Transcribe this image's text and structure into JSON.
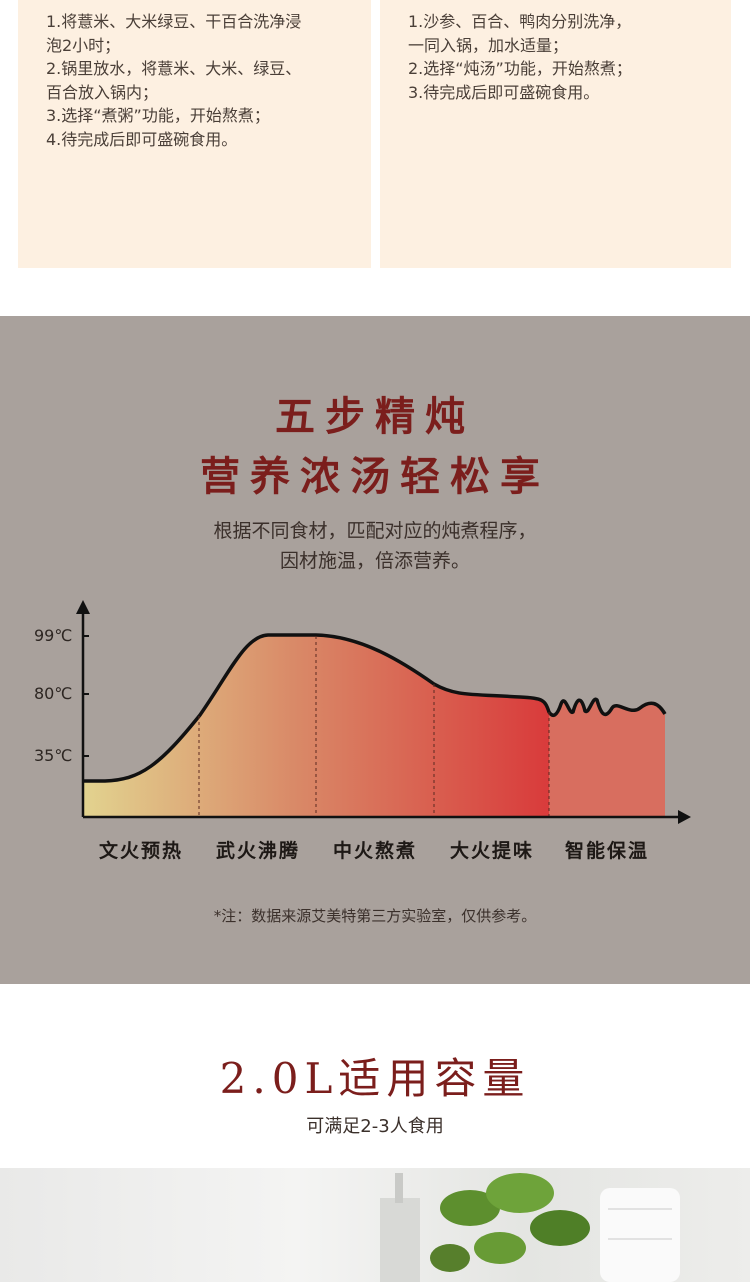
{
  "recipes": [
    {
      "steps": [
        "1.将薏米、大米绿豆、干百合洗净浸",
        "泡2小时；",
        "2.锅里放水，将薏米、大米、绿豆、",
        "百合放入锅内；",
        "3.选择“煮粥”功能，开始熬煮；",
        "4.待完成后即可盛碗食用。"
      ]
    },
    {
      "steps": [
        "1.沙参、百合、鸭肉分别洗净，",
        "一同入锅，加水适量；",
        "2.选择“炖汤”功能，开始熬煮；",
        "3.待完成后即可盛碗食用。"
      ]
    }
  ],
  "feature": {
    "title_line1": "五步精炖",
    "title_line2": "营养浓汤轻松享",
    "subtitle_line1": "根据不同食材，匹配对应的炖煮程序，",
    "subtitle_line2": "因材施温，倍添营养。",
    "note": "*注：数据来源艾美特第三方实验室，仅供参考。"
  },
  "chart_data": {
    "type": "area",
    "y_ticks": [
      "99℃",
      "80℃",
      "35℃"
    ],
    "stages": [
      "文火预热",
      "武火沸腾",
      "中火熬煮",
      "大火提味",
      "智能保温"
    ],
    "colors": {
      "start": "#e2d38f",
      "mid": "#d98a68",
      "peak": "#d93b3b",
      "keep_warm": "#d86e5f",
      "line": "#111111"
    }
  },
  "capacity": {
    "title": "2.0L适用容量",
    "subtitle": "可满足2-3人食用"
  },
  "colors": {
    "card_bg": "#fdf0e1",
    "section_bg": "#a9a19c",
    "title_red": "#7b1e1c"
  }
}
